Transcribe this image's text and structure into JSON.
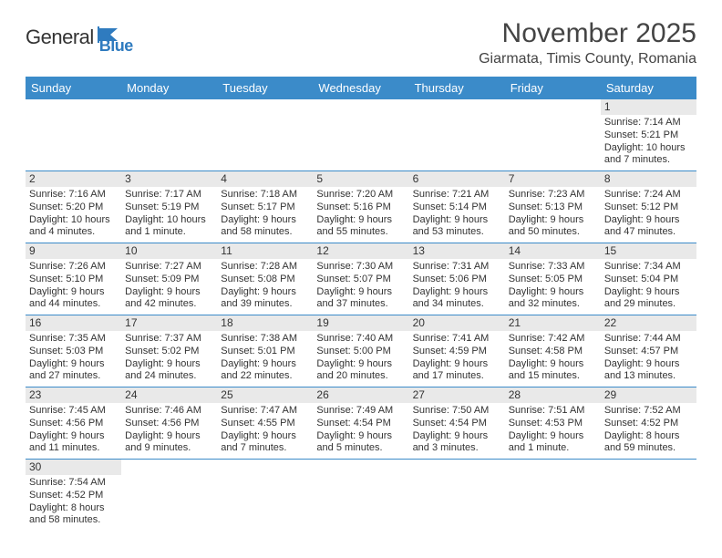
{
  "logo": {
    "text1": "General",
    "text2": "Blue"
  },
  "header": {
    "title": "November 2025",
    "location": "Giarmata, Timis County, Romania"
  },
  "colors": {
    "header_bg": "#3b8bc9",
    "header_text": "#ffffff",
    "daynum_bg": "#e9e9e9",
    "week_border": "#3b8bc9",
    "page_bg": "#ffffff",
    "text": "#333333"
  },
  "typography": {
    "title_fontsize": 30,
    "location_fontsize": 16,
    "weekday_fontsize": 13,
    "cell_fontsize": 11
  },
  "weekdays": [
    "Sunday",
    "Monday",
    "Tuesday",
    "Wednesday",
    "Thursday",
    "Friday",
    "Saturday"
  ],
  "weeks": [
    [
      {
        "empty": true
      },
      {
        "empty": true
      },
      {
        "empty": true
      },
      {
        "empty": true
      },
      {
        "empty": true
      },
      {
        "empty": true
      },
      {
        "num": "1",
        "sunrise": "Sunrise: 7:14 AM",
        "sunset": "Sunset: 5:21 PM",
        "daylight1": "Daylight: 10 hours",
        "daylight2": "and 7 minutes."
      }
    ],
    [
      {
        "num": "2",
        "sunrise": "Sunrise: 7:16 AM",
        "sunset": "Sunset: 5:20 PM",
        "daylight1": "Daylight: 10 hours",
        "daylight2": "and 4 minutes."
      },
      {
        "num": "3",
        "sunrise": "Sunrise: 7:17 AM",
        "sunset": "Sunset: 5:19 PM",
        "daylight1": "Daylight: 10 hours",
        "daylight2": "and 1 minute."
      },
      {
        "num": "4",
        "sunrise": "Sunrise: 7:18 AM",
        "sunset": "Sunset: 5:17 PM",
        "daylight1": "Daylight: 9 hours",
        "daylight2": "and 58 minutes."
      },
      {
        "num": "5",
        "sunrise": "Sunrise: 7:20 AM",
        "sunset": "Sunset: 5:16 PM",
        "daylight1": "Daylight: 9 hours",
        "daylight2": "and 55 minutes."
      },
      {
        "num": "6",
        "sunrise": "Sunrise: 7:21 AM",
        "sunset": "Sunset: 5:14 PM",
        "daylight1": "Daylight: 9 hours",
        "daylight2": "and 53 minutes."
      },
      {
        "num": "7",
        "sunrise": "Sunrise: 7:23 AM",
        "sunset": "Sunset: 5:13 PM",
        "daylight1": "Daylight: 9 hours",
        "daylight2": "and 50 minutes."
      },
      {
        "num": "8",
        "sunrise": "Sunrise: 7:24 AM",
        "sunset": "Sunset: 5:12 PM",
        "daylight1": "Daylight: 9 hours",
        "daylight2": "and 47 minutes."
      }
    ],
    [
      {
        "num": "9",
        "sunrise": "Sunrise: 7:26 AM",
        "sunset": "Sunset: 5:10 PM",
        "daylight1": "Daylight: 9 hours",
        "daylight2": "and 44 minutes."
      },
      {
        "num": "10",
        "sunrise": "Sunrise: 7:27 AM",
        "sunset": "Sunset: 5:09 PM",
        "daylight1": "Daylight: 9 hours",
        "daylight2": "and 42 minutes."
      },
      {
        "num": "11",
        "sunrise": "Sunrise: 7:28 AM",
        "sunset": "Sunset: 5:08 PM",
        "daylight1": "Daylight: 9 hours",
        "daylight2": "and 39 minutes."
      },
      {
        "num": "12",
        "sunrise": "Sunrise: 7:30 AM",
        "sunset": "Sunset: 5:07 PM",
        "daylight1": "Daylight: 9 hours",
        "daylight2": "and 37 minutes."
      },
      {
        "num": "13",
        "sunrise": "Sunrise: 7:31 AM",
        "sunset": "Sunset: 5:06 PM",
        "daylight1": "Daylight: 9 hours",
        "daylight2": "and 34 minutes."
      },
      {
        "num": "14",
        "sunrise": "Sunrise: 7:33 AM",
        "sunset": "Sunset: 5:05 PM",
        "daylight1": "Daylight: 9 hours",
        "daylight2": "and 32 minutes."
      },
      {
        "num": "15",
        "sunrise": "Sunrise: 7:34 AM",
        "sunset": "Sunset: 5:04 PM",
        "daylight1": "Daylight: 9 hours",
        "daylight2": "and 29 minutes."
      }
    ],
    [
      {
        "num": "16",
        "sunrise": "Sunrise: 7:35 AM",
        "sunset": "Sunset: 5:03 PM",
        "daylight1": "Daylight: 9 hours",
        "daylight2": "and 27 minutes."
      },
      {
        "num": "17",
        "sunrise": "Sunrise: 7:37 AM",
        "sunset": "Sunset: 5:02 PM",
        "daylight1": "Daylight: 9 hours",
        "daylight2": "and 24 minutes."
      },
      {
        "num": "18",
        "sunrise": "Sunrise: 7:38 AM",
        "sunset": "Sunset: 5:01 PM",
        "daylight1": "Daylight: 9 hours",
        "daylight2": "and 22 minutes."
      },
      {
        "num": "19",
        "sunrise": "Sunrise: 7:40 AM",
        "sunset": "Sunset: 5:00 PM",
        "daylight1": "Daylight: 9 hours",
        "daylight2": "and 20 minutes."
      },
      {
        "num": "20",
        "sunrise": "Sunrise: 7:41 AM",
        "sunset": "Sunset: 4:59 PM",
        "daylight1": "Daylight: 9 hours",
        "daylight2": "and 17 minutes."
      },
      {
        "num": "21",
        "sunrise": "Sunrise: 7:42 AM",
        "sunset": "Sunset: 4:58 PM",
        "daylight1": "Daylight: 9 hours",
        "daylight2": "and 15 minutes."
      },
      {
        "num": "22",
        "sunrise": "Sunrise: 7:44 AM",
        "sunset": "Sunset: 4:57 PM",
        "daylight1": "Daylight: 9 hours",
        "daylight2": "and 13 minutes."
      }
    ],
    [
      {
        "num": "23",
        "sunrise": "Sunrise: 7:45 AM",
        "sunset": "Sunset: 4:56 PM",
        "daylight1": "Daylight: 9 hours",
        "daylight2": "and 11 minutes."
      },
      {
        "num": "24",
        "sunrise": "Sunrise: 7:46 AM",
        "sunset": "Sunset: 4:56 PM",
        "daylight1": "Daylight: 9 hours",
        "daylight2": "and 9 minutes."
      },
      {
        "num": "25",
        "sunrise": "Sunrise: 7:47 AM",
        "sunset": "Sunset: 4:55 PM",
        "daylight1": "Daylight: 9 hours",
        "daylight2": "and 7 minutes."
      },
      {
        "num": "26",
        "sunrise": "Sunrise: 7:49 AM",
        "sunset": "Sunset: 4:54 PM",
        "daylight1": "Daylight: 9 hours",
        "daylight2": "and 5 minutes."
      },
      {
        "num": "27",
        "sunrise": "Sunrise: 7:50 AM",
        "sunset": "Sunset: 4:54 PM",
        "daylight1": "Daylight: 9 hours",
        "daylight2": "and 3 minutes."
      },
      {
        "num": "28",
        "sunrise": "Sunrise: 7:51 AM",
        "sunset": "Sunset: 4:53 PM",
        "daylight1": "Daylight: 9 hours",
        "daylight2": "and 1 minute."
      },
      {
        "num": "29",
        "sunrise": "Sunrise: 7:52 AM",
        "sunset": "Sunset: 4:52 PM",
        "daylight1": "Daylight: 8 hours",
        "daylight2": "and 59 minutes."
      }
    ],
    [
      {
        "num": "30",
        "sunrise": "Sunrise: 7:54 AM",
        "sunset": "Sunset: 4:52 PM",
        "daylight1": "Daylight: 8 hours",
        "daylight2": "and 58 minutes."
      },
      {
        "empty": true
      },
      {
        "empty": true
      },
      {
        "empty": true
      },
      {
        "empty": true
      },
      {
        "empty": true
      },
      {
        "empty": true
      }
    ]
  ]
}
